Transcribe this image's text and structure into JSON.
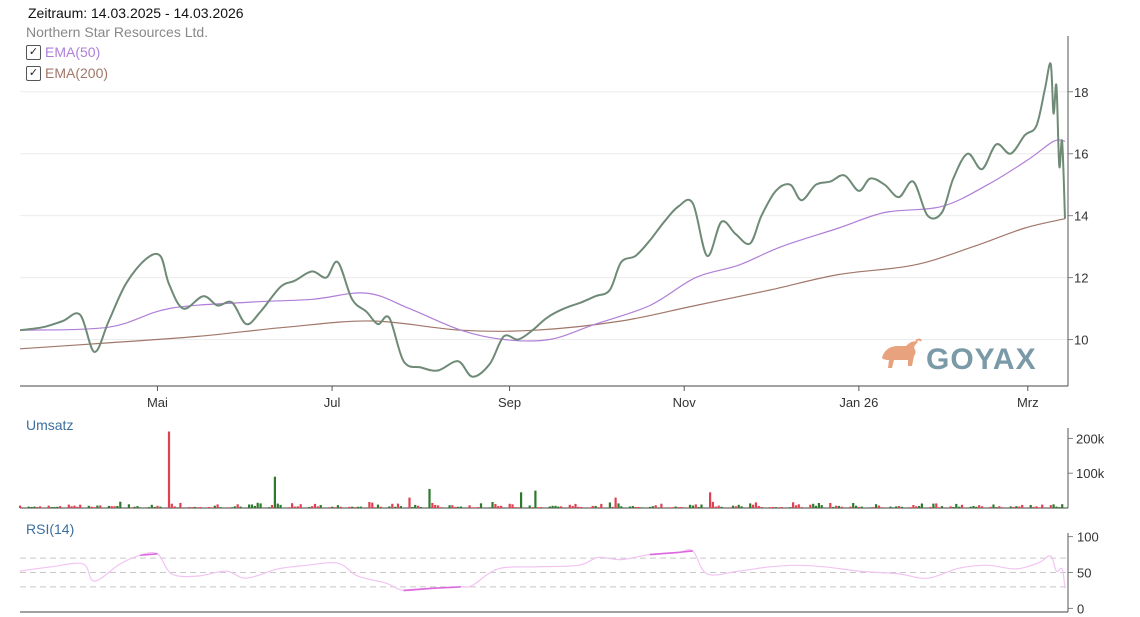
{
  "header": {
    "period": "Zeitraum: 14.03.2025 - 14.03.2026",
    "instrument": "Northern Star Resources Ltd.",
    "ema50_label": "EMA(50)",
    "ema200_label": "EMA(200)",
    "ema50_checked": true,
    "ema200_checked": true
  },
  "colors": {
    "price": "#6f8a77",
    "ema50": "#b07ed8",
    "ema200": "#a1776a",
    "vol_up": "#2d7a2d",
    "vol_down": "#e04050",
    "rsi": "#dd66dd",
    "rsi_light": "#f2c4f2",
    "logo_bull": "#e9a27e",
    "logo_text": "#7a9aa8",
    "panel_label": "#3a6fa0"
  },
  "logo": {
    "text": "GOYAX",
    "icon": "bull-icon"
  },
  "chart_data": [
    {
      "type": "line",
      "panel": "price",
      "x_tick_labels": [
        "Mai",
        "Jul",
        "Sep",
        "Nov",
        "Jan 26",
        "Mrz"
      ],
      "x_tick_dates": [
        "2025-05-01",
        "2025-07-01",
        "2025-09-01",
        "2025-11-01",
        "2026-01-01",
        "2026-03-01"
      ],
      "x_range": [
        "2025-03-14",
        "2026-03-14"
      ],
      "yticks": [
        10,
        12,
        14,
        16,
        18
      ],
      "ylim": [
        8.5,
        19.8
      ],
      "grid": true,
      "series": [
        {
          "name": "Northern Star Resources Ltd.",
          "points": [
            [
              "2025-03-14",
              10.3
            ],
            [
              "2025-03-22",
              10.4
            ],
            [
              "2025-03-29",
              10.6
            ],
            [
              "2025-04-04",
              10.8
            ],
            [
              "2025-04-09",
              9.6
            ],
            [
              "2025-04-14",
              10.6
            ],
            [
              "2025-04-20",
              11.8
            ],
            [
              "2025-04-27",
              12.6
            ],
            [
              "2025-05-02",
              12.7
            ],
            [
              "2025-05-05",
              11.8
            ],
            [
              "2025-05-10",
              11.0
            ],
            [
              "2025-05-17",
              11.4
            ],
            [
              "2025-05-22",
              11.1
            ],
            [
              "2025-05-27",
              11.2
            ],
            [
              "2025-06-01",
              10.5
            ],
            [
              "2025-06-06",
              10.9
            ],
            [
              "2025-06-13",
              11.7
            ],
            [
              "2025-06-18",
              11.9
            ],
            [
              "2025-06-24",
              12.2
            ],
            [
              "2025-06-29",
              12.0
            ],
            [
              "2025-07-03",
              12.5
            ],
            [
              "2025-07-08",
              11.3
            ],
            [
              "2025-07-13",
              10.9
            ],
            [
              "2025-07-17",
              10.5
            ],
            [
              "2025-07-21",
              10.7
            ],
            [
              "2025-07-26",
              9.3
            ],
            [
              "2025-08-01",
              9.1
            ],
            [
              "2025-08-07",
              9.0
            ],
            [
              "2025-08-14",
              9.3
            ],
            [
              "2025-08-19",
              8.8
            ],
            [
              "2025-08-25",
              9.2
            ],
            [
              "2025-08-30",
              10.1
            ],
            [
              "2025-09-04",
              10.0
            ],
            [
              "2025-09-09",
              10.3
            ],
            [
              "2025-09-14",
              10.7
            ],
            [
              "2025-09-20",
              11.0
            ],
            [
              "2025-09-26",
              11.2
            ],
            [
              "2025-10-01",
              11.4
            ],
            [
              "2025-10-06",
              11.6
            ],
            [
              "2025-10-10",
              12.5
            ],
            [
              "2025-10-15",
              12.7
            ],
            [
              "2025-10-20",
              13.2
            ],
            [
              "2025-10-25",
              13.8
            ],
            [
              "2025-10-30",
              14.3
            ],
            [
              "2025-11-04",
              14.4
            ],
            [
              "2025-11-09",
              12.7
            ],
            [
              "2025-11-14",
              13.8
            ],
            [
              "2025-11-19",
              13.4
            ],
            [
              "2025-11-24",
              13.1
            ],
            [
              "2025-11-28",
              14.0
            ],
            [
              "2025-12-03",
              14.8
            ],
            [
              "2025-12-08",
              15.0
            ],
            [
              "2025-12-12",
              14.5
            ],
            [
              "2025-12-17",
              15.0
            ],
            [
              "2025-12-22",
              15.1
            ],
            [
              "2025-12-27",
              15.3
            ],
            [
              "2026-01-01",
              14.8
            ],
            [
              "2026-01-05",
              15.2
            ],
            [
              "2026-01-10",
              15.0
            ],
            [
              "2026-01-15",
              14.6
            ],
            [
              "2026-01-20",
              15.1
            ],
            [
              "2026-01-25",
              14.0
            ],
            [
              "2026-01-30",
              14.1
            ],
            [
              "2026-02-03",
              15.2
            ],
            [
              "2026-02-08",
              16.0
            ],
            [
              "2026-02-13",
              15.5
            ],
            [
              "2026-02-18",
              16.3
            ],
            [
              "2026-02-23",
              16.0
            ],
            [
              "2026-02-28",
              16.6
            ],
            [
              "2026-03-04",
              16.9
            ],
            [
              "2026-03-07",
              18.1
            ],
            [
              "2026-03-09",
              18.9
            ],
            [
              "2026-03-10",
              17.3
            ],
            [
              "2026-03-11",
              18.2
            ],
            [
              "2026-03-12",
              15.6
            ],
            [
              "2026-03-13",
              16.4
            ],
            [
              "2026-03-14",
              13.9
            ]
          ]
        },
        {
          "name": "EMA(50)",
          "points": [
            [
              "2025-03-14",
              10.3
            ],
            [
              "2025-04-14",
              10.4
            ],
            [
              "2025-05-05",
              11.0
            ],
            [
              "2025-06-01",
              11.2
            ],
            [
              "2025-06-24",
              11.3
            ],
            [
              "2025-07-13",
              11.5
            ],
            [
              "2025-07-28",
              11.0
            ],
            [
              "2025-08-15",
              10.3
            ],
            [
              "2025-08-30",
              10.0
            ],
            [
              "2025-09-15",
              10.0
            ],
            [
              "2025-10-01",
              10.5
            ],
            [
              "2025-10-20",
              11.1
            ],
            [
              "2025-11-05",
              12.0
            ],
            [
              "2025-11-20",
              12.4
            ],
            [
              "2025-12-05",
              13.0
            ],
            [
              "2025-12-25",
              13.6
            ],
            [
              "2026-01-10",
              14.1
            ],
            [
              "2026-01-30",
              14.3
            ],
            [
              "2026-02-15",
              15.0
            ],
            [
              "2026-03-01",
              15.8
            ],
            [
              "2026-03-10",
              16.4
            ],
            [
              "2026-03-14",
              16.4
            ]
          ]
        },
        {
          "name": "EMA(200)",
          "points": [
            [
              "2025-03-14",
              9.7
            ],
            [
              "2025-04-15",
              9.9
            ],
            [
              "2025-05-15",
              10.1
            ],
            [
              "2025-06-15",
              10.4
            ],
            [
              "2025-07-15",
              10.6
            ],
            [
              "2025-08-15",
              10.3
            ],
            [
              "2025-09-10",
              10.3
            ],
            [
              "2025-10-10",
              10.6
            ],
            [
              "2025-11-05",
              11.1
            ],
            [
              "2025-12-01",
              11.6
            ],
            [
              "2025-12-25",
              12.1
            ],
            [
              "2026-01-20",
              12.4
            ],
            [
              "2026-02-10",
              13.0
            ],
            [
              "2026-02-28",
              13.6
            ],
            [
              "2026-03-14",
              13.9
            ]
          ]
        }
      ]
    },
    {
      "type": "bar",
      "panel": "volume",
      "title": "Umsatz",
      "yticks": [
        100000,
        200000
      ],
      "ytick_labels": [
        "100k",
        "200k"
      ],
      "ylim": [
        0,
        230000
      ],
      "spikes": [
        [
          "2025-04-27",
          40000,
          "up"
        ],
        [
          "2025-05-05",
          220000,
          "down"
        ],
        [
          "2025-06-11",
          90000,
          "up"
        ],
        [
          "2025-08-02",
          70000,
          "up"
        ],
        [
          "2025-08-04",
          55000,
          "up"
        ],
        [
          "2025-08-10",
          35000,
          "up"
        ],
        [
          "2025-07-28",
          30000,
          "down"
        ],
        [
          "2025-09-05",
          45000,
          "up"
        ],
        [
          "2025-09-10",
          50000,
          "up"
        ],
        [
          "2025-11-10",
          45000,
          "down"
        ],
        [
          "2025-10-08",
          30000,
          "down"
        ],
        [
          "2026-02-08",
          35000,
          "down"
        ],
        [
          "2026-01-25",
          28000,
          "up"
        ],
        [
          "2025-12-20",
          25000,
          "down"
        ]
      ],
      "baseline_max": 20000
    },
    {
      "type": "line",
      "panel": "rsi",
      "title": "RSI(14)",
      "yticks": [
        0,
        50,
        100
      ],
      "ylim": [
        -5,
        105
      ],
      "levels": [
        30,
        50,
        70
      ],
      "series": [
        {
          "name": "RSI(14)",
          "points": [
            [
              "2025-03-14",
              52
            ],
            [
              "2025-03-25",
              58
            ],
            [
              "2025-04-05",
              62
            ],
            [
              "2025-04-09",
              38
            ],
            [
              "2025-04-18",
              62
            ],
            [
              "2025-04-25",
              74
            ],
            [
              "2025-05-01",
              76
            ],
            [
              "2025-05-06",
              48
            ],
            [
              "2025-05-15",
              45
            ],
            [
              "2025-05-25",
              52
            ],
            [
              "2025-06-01",
              42
            ],
            [
              "2025-06-12",
              55
            ],
            [
              "2025-06-22",
              60
            ],
            [
              "2025-07-03",
              63
            ],
            [
              "2025-07-10",
              45
            ],
            [
              "2025-07-20",
              35
            ],
            [
              "2025-07-26",
              25
            ],
            [
              "2025-08-05",
              28
            ],
            [
              "2025-08-15",
              30
            ],
            [
              "2025-08-19",
              32
            ],
            [
              "2025-08-28",
              55
            ],
            [
              "2025-09-10",
              58
            ],
            [
              "2025-09-25",
              60
            ],
            [
              "2025-10-02",
              71
            ],
            [
              "2025-10-10",
              68
            ],
            [
              "2025-10-20",
              75
            ],
            [
              "2025-10-30",
              78
            ],
            [
              "2025-11-04",
              80
            ],
            [
              "2025-11-09",
              48
            ],
            [
              "2025-11-20",
              52
            ],
            [
              "2025-12-01",
              58
            ],
            [
              "2025-12-10",
              60
            ],
            [
              "2025-12-20",
              58
            ],
            [
              "2026-01-01",
              52
            ],
            [
              "2026-01-15",
              48
            ],
            [
              "2026-01-25",
              42
            ],
            [
              "2026-02-05",
              56
            ],
            [
              "2026-02-15",
              60
            ],
            [
              "2026-02-25",
              55
            ],
            [
              "2026-03-05",
              64
            ],
            [
              "2026-03-09",
              73
            ],
            [
              "2026-03-11",
              52
            ],
            [
              "2026-03-13",
              55
            ],
            [
              "2026-03-14",
              28
            ]
          ]
        }
      ]
    }
  ]
}
